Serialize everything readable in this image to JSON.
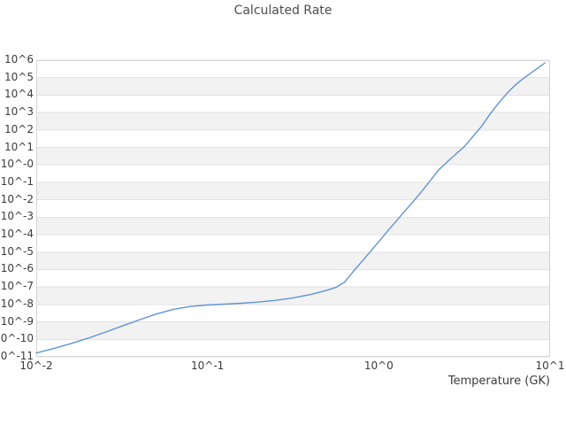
{
  "title": "Calculated Rate",
  "colors": {
    "background": "#ffffff",
    "line": "#6094d6",
    "band": "#f2f2f2",
    "grid": "#e2e2e2",
    "border": "#d4d4d4",
    "tick_text": "#3c3c3c",
    "title_text": "#4d4d4d"
  },
  "chart_data": {
    "type": "line",
    "title": "Calculated Rate",
    "xlabel": "Temperature (GK)",
    "ylabel": "",
    "x_scale": "log10",
    "y_scale": "log10",
    "xlim_log10": [
      -2,
      1
    ],
    "ylim_log10": [
      -11,
      6
    ],
    "x_tick_labels": [
      "10^-2",
      "10^-1",
      "10^0",
      "10^1"
    ],
    "y_tick_labels": [
      "10^6",
      "10^5",
      "10^4",
      "10^3",
      "10^2",
      "10^1",
      "10^-0",
      "10^-1",
      "10^-2",
      "10^-3",
      "10^-4",
      "10^-5",
      "10^-6",
      "10^-7",
      "10^-8",
      "10^-9",
      "10^-10",
      "10^-11"
    ],
    "grid": "horizontal",
    "alternating_bands": true,
    "legend": "none",
    "series": [
      {
        "name": "Calculated Rate",
        "points_log10": [
          [
            -2.0,
            -10.78
          ],
          [
            -1.9,
            -10.53
          ],
          [
            -1.8,
            -10.25
          ],
          [
            -1.7,
            -9.94
          ],
          [
            -1.6,
            -9.6
          ],
          [
            -1.5,
            -9.24
          ],
          [
            -1.4,
            -8.89
          ],
          [
            -1.3,
            -8.55
          ],
          [
            -1.2,
            -8.28
          ],
          [
            -1.1,
            -8.11
          ],
          [
            -1.0,
            -8.03
          ],
          [
            -0.9,
            -7.98
          ],
          [
            -0.8,
            -7.93
          ],
          [
            -0.7,
            -7.86
          ],
          [
            -0.6,
            -7.76
          ],
          [
            -0.5,
            -7.62
          ],
          [
            -0.4,
            -7.43
          ],
          [
            -0.3,
            -7.18
          ],
          [
            -0.25,
            -7.02
          ],
          [
            -0.2,
            -6.72
          ],
          [
            -0.14,
            -6.0
          ],
          [
            -0.1,
            -5.55
          ],
          [
            -0.05,
            -4.97
          ],
          [
            0.0,
            -4.4
          ],
          [
            0.05,
            -3.81
          ],
          [
            0.1,
            -3.24
          ],
          [
            0.15,
            -2.67
          ],
          [
            0.2,
            -2.11
          ],
          [
            0.25,
            -1.52
          ],
          [
            0.3,
            -0.91
          ],
          [
            0.35,
            -0.28
          ],
          [
            0.4,
            0.18
          ],
          [
            0.45,
            0.62
          ],
          [
            0.5,
            1.06
          ],
          [
            0.55,
            1.63
          ],
          [
            0.6,
            2.21
          ],
          [
            0.65,
            2.92
          ],
          [
            0.7,
            3.55
          ],
          [
            0.75,
            4.12
          ],
          [
            0.8,
            4.61
          ],
          [
            0.85,
            5.0
          ],
          [
            0.9,
            5.35
          ],
          [
            0.95,
            5.7
          ],
          [
            0.97,
            5.85
          ]
        ]
      }
    ]
  }
}
